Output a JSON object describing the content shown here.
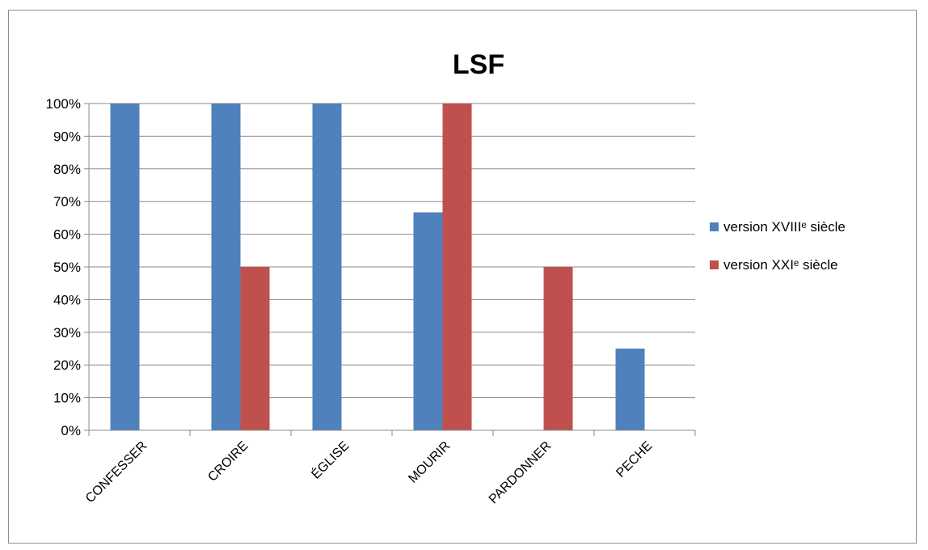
{
  "chart_data": {
    "type": "bar",
    "title": "LSF",
    "xlabel": "",
    "ylabel": "",
    "categories": [
      "CONFESSER",
      "CROIRE",
      "ÉGLISE",
      "MOURIR",
      "PARDONNER",
      "PECHE"
    ],
    "series": [
      {
        "name": "version XVIIIᵉ siècle",
        "color": "#4f81bd",
        "values": [
          100,
          100,
          100,
          66.7,
          0,
          25
        ]
      },
      {
        "name": "version XXIᵉ siècle",
        "color": "#c0504d",
        "values": [
          0,
          50,
          0,
          100,
          50,
          0
        ]
      }
    ],
    "ylim": [
      0,
      100
    ],
    "yticks": [
      "0%",
      "10%",
      "20%",
      "30%",
      "40%",
      "50%",
      "60%",
      "70%",
      "80%",
      "90%",
      "100%"
    ],
    "grid": true,
    "legend_position": "right"
  }
}
